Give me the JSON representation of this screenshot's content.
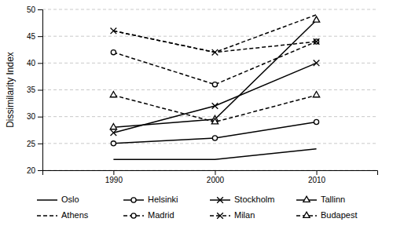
{
  "chart_data": {
    "type": "line",
    "x": [
      1990,
      2000,
      2010
    ],
    "series": [
      {
        "name": "Oslo",
        "values": [
          22,
          22,
          24
        ],
        "color": "#000000",
        "line_style": "solid",
        "marker": "none"
      },
      {
        "name": "Helsinki",
        "values": [
          25,
          26,
          29
        ],
        "color": "#000000",
        "line_style": "solid",
        "marker": "circle"
      },
      {
        "name": "Stockholm",
        "values": [
          27,
          32,
          40
        ],
        "color": "#000000",
        "line_style": "solid",
        "marker": "x"
      },
      {
        "name": "Tallinn",
        "values": [
          28,
          29.5,
          48
        ],
        "color": "#000000",
        "line_style": "solid",
        "marker": "triangle"
      },
      {
        "name": "Athens",
        "values": [
          46,
          42,
          49
        ],
        "color": "#000000",
        "line_style": "dashed",
        "marker": "none"
      },
      {
        "name": "Madrid",
        "values": [
          42,
          36,
          44
        ],
        "color": "#000000",
        "line_style": "dashed",
        "marker": "circle"
      },
      {
        "name": "Milan",
        "values": [
          46,
          42,
          44
        ],
        "color": "#000000",
        "line_style": "dashed",
        "marker": "x"
      },
      {
        "name": "Budapest",
        "values": [
          34,
          29,
          34
        ],
        "color": "#000000",
        "line_style": "dashed",
        "marker": "triangle"
      }
    ],
    "ylabel": "Dissimilarity Index",
    "xlim": [
      1983,
      2016
    ],
    "xticks": [
      1990,
      2000,
      2010
    ],
    "ylim": [
      20,
      50
    ],
    "yticks": [
      20,
      25,
      30,
      35,
      40,
      45,
      50
    ],
    "grid": true,
    "legend": "bottom"
  }
}
